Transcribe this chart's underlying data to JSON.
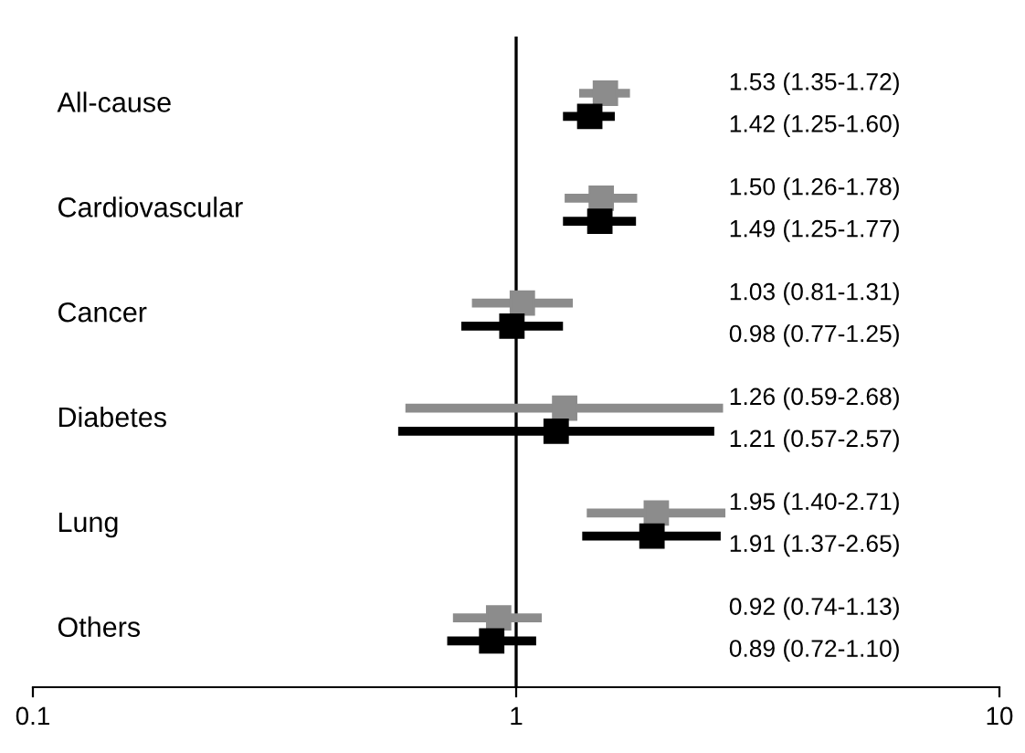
{
  "chart_data": {
    "type": "scatter",
    "orientation": "horizontal",
    "categories": [
      "All-cause",
      "Cardiovascular",
      "Cancer",
      "Diabetes",
      "Lung",
      "Others"
    ],
    "series": [
      {
        "color": "#8c8c8c",
        "values": [
          1.53,
          1.5,
          1.03,
          1.26,
          1.95,
          0.92
        ],
        "errors": [
          [
            1.35,
            1.72
          ],
          [
            1.26,
            1.78
          ],
          [
            0.81,
            1.31
          ],
          [
            0.59,
            2.68
          ],
          [
            1.4,
            2.71
          ],
          [
            0.74,
            1.13
          ]
        ]
      },
      {
        "color": "#000000",
        "values": [
          1.42,
          1.49,
          0.98,
          1.21,
          1.91,
          0.89
        ],
        "errors": [
          [
            1.25,
            1.6
          ],
          [
            1.25,
            1.77
          ],
          [
            0.77,
            1.25
          ],
          [
            0.57,
            2.57
          ],
          [
            1.37,
            2.65
          ],
          [
            0.72,
            1.1
          ]
        ]
      }
    ],
    "annotations": [
      "1.53 (1.35-1.72)",
      "1.42 (1.25-1.60)",
      "1.50 (1.26-1.78)",
      "1.49 (1.25-1.77)",
      "1.03 (0.81-1.31)",
      "0.98 (0.77-1.25)",
      "1.26 (0.59-2.68)",
      "1.21 (0.57-2.57)",
      "1.95 (1.40-2.71)",
      "1.91 (1.37-2.65)",
      "0.92 (0.74-1.13)",
      "0.89 (0.72-1.10)"
    ],
    "log": "x",
    "xlim": [
      0.1,
      10
    ],
    "xticks": [
      0.1,
      1,
      10
    ],
    "marker": "square",
    "grid": false,
    "ref_lines": [
      {
        "axis": "x",
        "value": 1,
        "color": "#000000"
      }
    ]
  }
}
